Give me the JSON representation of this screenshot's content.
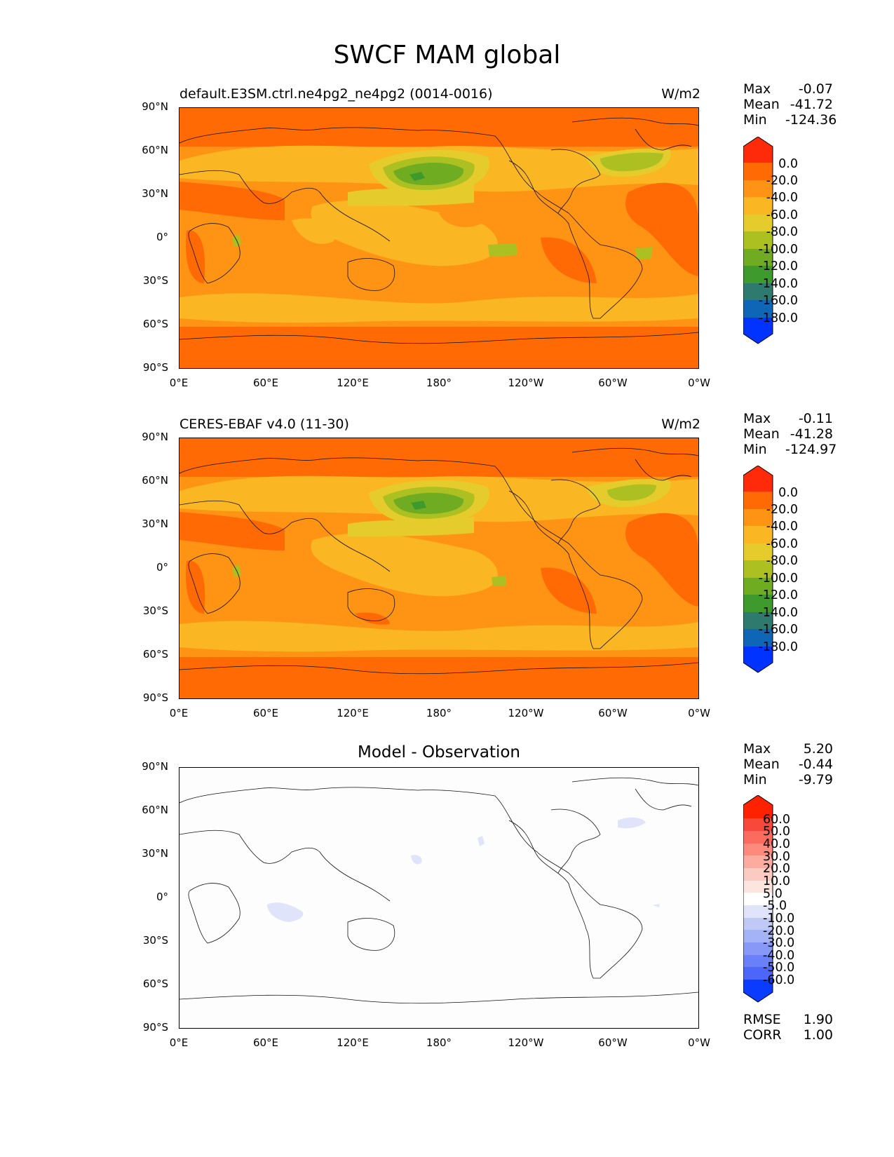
{
  "title": "SWCF MAM global",
  "panels": [
    {
      "left_title": "default.E3SM.ctrl.ne4pg2_ne4pg2 (0014-0016)",
      "units": "W/m2",
      "center_title": "",
      "stats": [
        {
          "name": "Max",
          "value": "-0.07"
        },
        {
          "name": "Mean",
          "value": "-41.72"
        },
        {
          "name": "Min",
          "value": "-124.36"
        }
      ]
    },
    {
      "left_title": "CERES-EBAF v4.0 (11-30)",
      "units": "W/m2",
      "center_title": "",
      "stats": [
        {
          "name": "Max",
          "value": "-0.11"
        },
        {
          "name": "Mean",
          "value": "-41.28"
        },
        {
          "name": "Min",
          "value": "-124.97"
        }
      ]
    },
    {
      "left_title": "",
      "units": "",
      "center_title": "Model - Observation",
      "stats": [
        {
          "name": "Max",
          "value": "5.20"
        },
        {
          "name": "Mean",
          "value": "-0.44"
        },
        {
          "name": "Min",
          "value": "-9.79"
        }
      ],
      "metrics": [
        {
          "name": "RMSE",
          "value": "1.90"
        },
        {
          "name": "CORR",
          "value": "1.00"
        }
      ]
    }
  ],
  "axes": {
    "y_ticks": [
      "90°N",
      "60°N",
      "30°N",
      "0°",
      "30°S",
      "60°S",
      "90°S"
    ],
    "x_ticks": [
      "0°E",
      "60°E",
      "120°E",
      "180°",
      "120°W",
      "60°W",
      "0°W"
    ]
  },
  "colorbars": {
    "field": {
      "labels": [
        "0.0",
        "-20.0",
        "-40.0",
        "-60.0",
        "-80.0",
        "-100.0",
        "-120.0",
        "-140.0",
        "-160.0",
        "-180.0"
      ],
      "colors": [
        "#ff2a0a",
        "#ff6a05",
        "#ff9414",
        "#fbb623",
        "#e5cc2c",
        "#adc022",
        "#6fac22",
        "#3e9a2c",
        "#2f7a6e",
        "#1066b6",
        "#0033ff"
      ]
    },
    "diff": {
      "labels": [
        "60.0",
        "50.0",
        "40.0",
        "30.0",
        "20.0",
        "10.0",
        "5.0",
        "-5.0",
        "-10.0",
        "-20.0",
        "-30.0",
        "-40.0",
        "-50.0",
        "-60.0"
      ],
      "colors": [
        "#ff2200",
        "#f8483c",
        "#fb6c5e",
        "#fd8a7c",
        "#fcab9e",
        "#fbcbc2",
        "#fce4df",
        "#ffffff",
        "#e0e4fa",
        "#c0c9f6",
        "#a4b2f6",
        "#8798f6",
        "#6a80f8",
        "#4c66fa",
        "#0a3cff"
      ]
    }
  },
  "chart_data": [
    {
      "type": "heatmap",
      "title": "SWCF MAM global",
      "subtitle": "default.E3SM.ctrl.ne4pg2_ne4pg2 (0014-0016)",
      "units": "W/m2",
      "xlim": [
        0,
        360
      ],
      "ylim": [
        -90,
        90
      ],
      "x_ticks": [
        "0°E",
        "60°E",
        "120°E",
        "180°",
        "120°W",
        "60°W",
        "0°W"
      ],
      "y_ticks": [
        "90°N",
        "60°N",
        "30°N",
        "0°",
        "30°S",
        "60°S",
        "90°S"
      ],
      "stats": {
        "max": -0.07,
        "mean": -41.72,
        "min": -124.36
      },
      "colorbar_levels": [
        0,
        -20,
        -40,
        -60,
        -80,
        -100,
        -120,
        -140,
        -160,
        -180
      ]
    },
    {
      "type": "heatmap",
      "title": "SWCF MAM global",
      "subtitle": "CERES-EBAF v4.0 (11-30)",
      "units": "W/m2",
      "xlim": [
        0,
        360
      ],
      "ylim": [
        -90,
        90
      ],
      "stats": {
        "max": -0.11,
        "mean": -41.28,
        "min": -124.97
      },
      "colorbar_levels": [
        0,
        -20,
        -40,
        -60,
        -80,
        -100,
        -120,
        -140,
        -160,
        -180
      ]
    },
    {
      "type": "heatmap",
      "title": "Model - Observation",
      "xlim": [
        0,
        360
      ],
      "ylim": [
        -90,
        90
      ],
      "stats": {
        "max": 5.2,
        "mean": -0.44,
        "min": -9.79,
        "rmse": 1.9,
        "corr": 1.0
      },
      "colorbar_levels": [
        60,
        50,
        40,
        30,
        20,
        10,
        5,
        -5,
        -10,
        -20,
        -30,
        -40,
        -50,
        -60
      ]
    }
  ]
}
